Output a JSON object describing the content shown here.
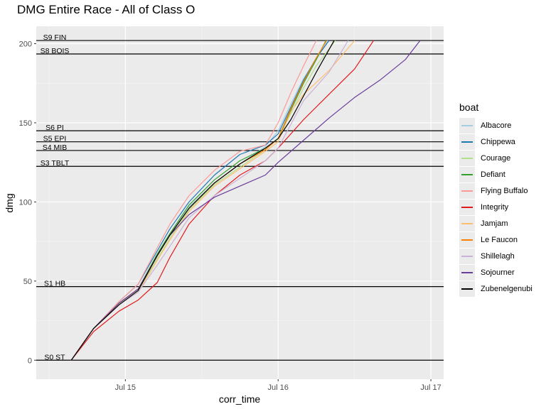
{
  "chart_data": {
    "type": "line",
    "title": "DMG Entire Race - All of Class O",
    "xlabel": "corr_time",
    "ylabel": "dmg",
    "x_domain": [
      "Jul 14 10:00",
      "Jul 17 02:00"
    ],
    "xlim": [
      -14,
      50
    ],
    "ylim": [
      -12,
      211
    ],
    "x_ticks": [
      {
        "label": "Jul 15",
        "value": 0
      },
      {
        "label": "Jul 16",
        "value": 24
      },
      {
        "label": "Jul 17",
        "value": 48
      }
    ],
    "y_ticks": [
      0,
      50,
      100,
      150,
      200
    ],
    "grid": true,
    "legend_title": "boat",
    "legend_position": "right",
    "stages": [
      {
        "label": "S9 FIN",
        "y": 202
      },
      {
        "label": "S8 BOIS",
        "y": 193.5
      },
      {
        "label": "S6 PI",
        "y": 145
      },
      {
        "label": "S5 EPI",
        "y": 138
      },
      {
        "label": "S4 MIB",
        "y": 132.5
      },
      {
        "label": "S3 TBLT",
        "y": 122.5
      },
      {
        "label": "S1 HB",
        "y": 46.5
      },
      {
        "label": "S0 ST",
        "y": 0
      }
    ],
    "series": [
      {
        "name": "Albacore",
        "color": "#a6cee3",
        "x": [
          -8.5,
          -5,
          -1,
          2,
          5,
          7,
          10,
          14,
          18,
          22,
          24,
          26,
          28,
          30,
          31.8
        ],
        "y": [
          0,
          20,
          36,
          45,
          66,
          79,
          97,
          112,
          124,
          135,
          145,
          162,
          178,
          190,
          202
        ]
      },
      {
        "name": "Chippewa",
        "color": "#1f78b4",
        "x": [
          -8.5,
          -5,
          -1,
          2,
          5,
          7,
          10,
          14,
          18,
          22,
          24,
          26,
          28,
          30,
          32
        ],
        "y": [
          0,
          20,
          37,
          48,
          69,
          83,
          100,
          117,
          130,
          136,
          143,
          160,
          177,
          191,
          202
        ]
      },
      {
        "name": "Courage",
        "color": "#b2df8a",
        "x": [
          -8.5,
          -5,
          -1,
          2,
          5,
          7,
          10,
          14,
          18,
          22,
          24,
          26,
          28,
          30,
          33
        ],
        "y": [
          0,
          20,
          35,
          44,
          64,
          77,
          95,
          111,
          122,
          133,
          140,
          156,
          172,
          186,
          202
        ]
      },
      {
        "name": "Defiant",
        "color": "#33a02c",
        "x": [
          -8.5,
          -5,
          -1,
          2,
          5,
          7,
          10,
          14,
          18,
          22,
          24,
          26,
          28,
          30,
          31.5
        ],
        "y": [
          0,
          20,
          36,
          45,
          67,
          80,
          98,
          114,
          126,
          134,
          140,
          158,
          175,
          190,
          202
        ]
      },
      {
        "name": "Flying Buffalo",
        "color": "#fb9a99",
        "x": [
          -8.5,
          -5,
          -1,
          2,
          5,
          7,
          10,
          14,
          18,
          22,
          24,
          26,
          28,
          30
        ],
        "y": [
          0,
          20,
          37,
          48,
          71,
          86,
          104,
          120,
          132,
          136,
          150,
          169,
          186,
          202
        ]
      },
      {
        "name": "Integrity",
        "color": "#e31a1c",
        "x": [
          -8.5,
          -5,
          -1,
          2,
          5,
          7,
          10,
          14,
          18,
          22,
          24,
          28,
          32,
          36,
          39
        ],
        "y": [
          0,
          18,
          31,
          38,
          49,
          65,
          86,
          104,
          117,
          126,
          134,
          152,
          168,
          184,
          202
        ]
      },
      {
        "name": "Jamjam",
        "color": "#fdbf6f",
        "x": [
          -8.5,
          -5,
          -1,
          2,
          5,
          7,
          10,
          14,
          18,
          22,
          24,
          26,
          28,
          32,
          36
        ],
        "y": [
          0,
          20,
          35,
          43,
          63,
          76,
          94,
          110,
          121,
          132,
          138,
          157,
          168,
          183,
          202
        ]
      },
      {
        "name": "Le Faucon",
        "color": "#ff7f00",
        "x": [
          -8.5,
          -5,
          -1,
          2,
          5,
          7,
          10,
          14,
          18,
          22,
          24,
          26,
          28,
          30,
          31.6
        ],
        "y": [
          0,
          20,
          36,
          45,
          66,
          79,
          96,
          112,
          124,
          133,
          140,
          159,
          176,
          191,
          202
        ]
      },
      {
        "name": "Shillelagh",
        "color": "#cab2d6",
        "x": [
          -8.5,
          -5,
          -1,
          2,
          5,
          7,
          10,
          14,
          18,
          22,
          24,
          26,
          28,
          32,
          35
        ],
        "y": [
          0,
          20,
          35,
          43,
          60,
          72,
          90,
          104,
          115,
          126,
          134,
          149,
          164,
          182,
          202
        ]
      },
      {
        "name": "Sojourner",
        "color": "#6a3d9a",
        "x": [
          -8.5,
          -5,
          -1,
          2,
          5,
          7,
          10,
          14,
          18,
          22,
          24,
          28,
          32,
          36,
          40,
          44,
          46.3
        ],
        "y": [
          0,
          20,
          36,
          45,
          66,
          79,
          92,
          103,
          110,
          117,
          125,
          139,
          153,
          166,
          177,
          190,
          202
        ]
      },
      {
        "name": "Zubenelgenubi",
        "color": "#000000",
        "x": [
          -8.5,
          -5,
          -1,
          2,
          5,
          7,
          10,
          14,
          18,
          22,
          24,
          26,
          28,
          30,
          32.8
        ],
        "y": [
          0,
          20,
          35,
          44,
          66,
          79,
          96,
          112,
          124,
          134,
          140,
          152,
          167,
          182,
          202
        ]
      }
    ]
  }
}
